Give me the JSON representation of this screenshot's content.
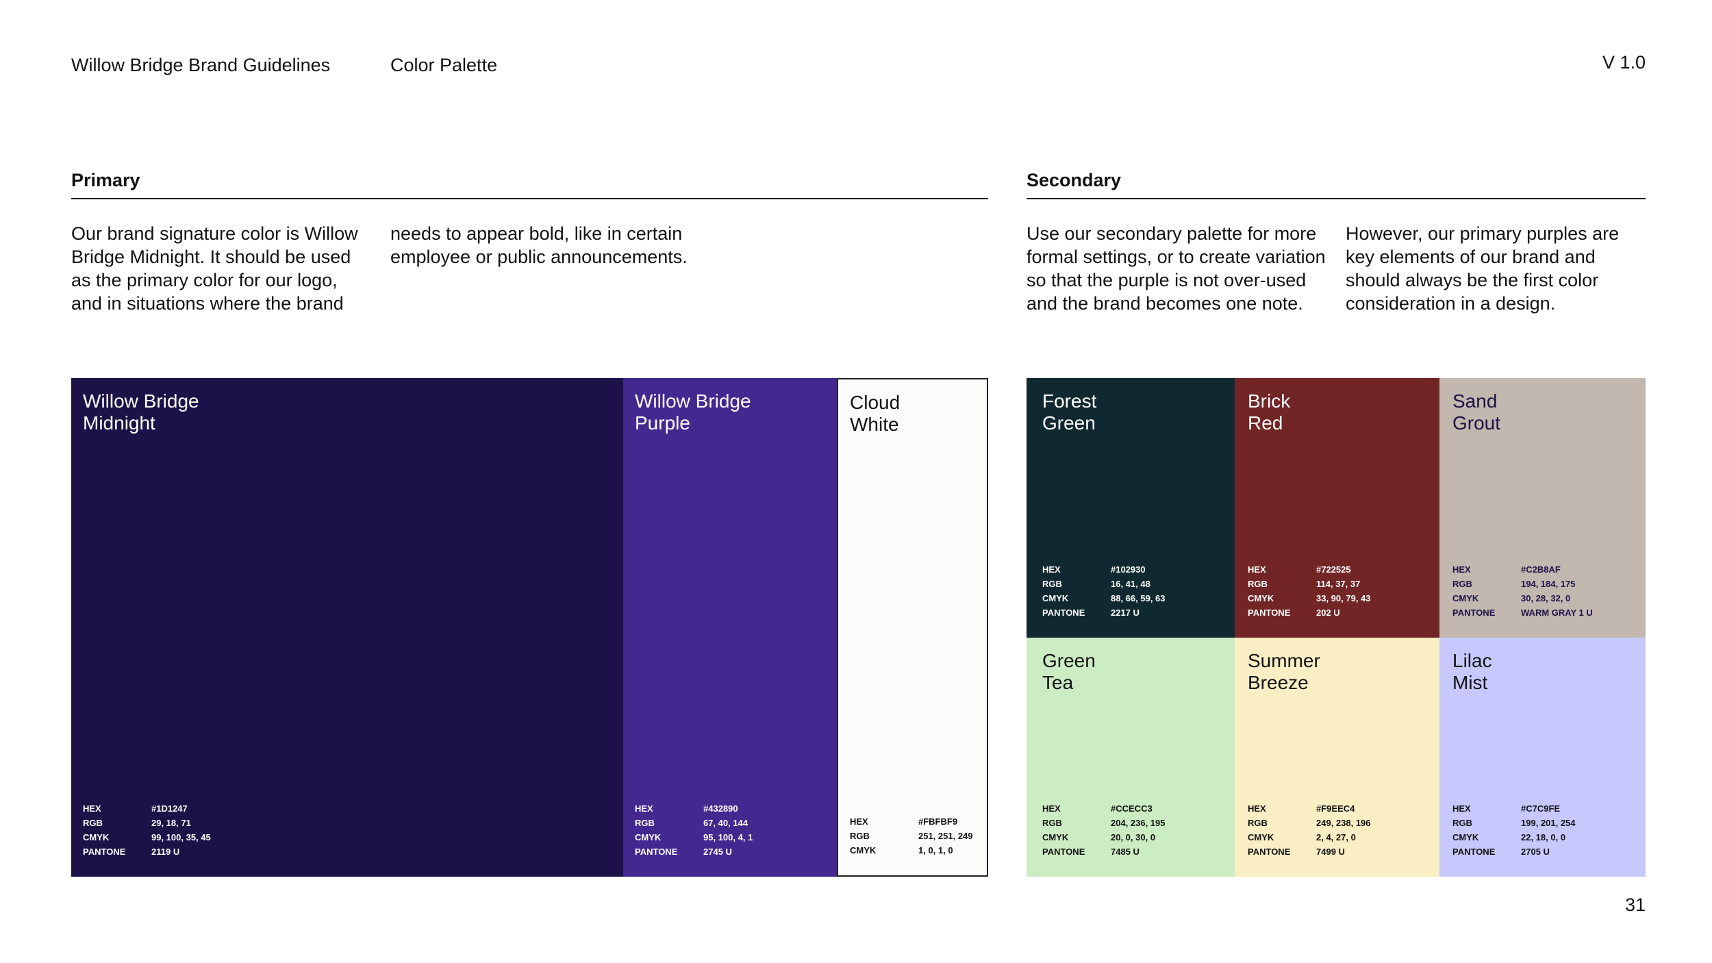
{
  "header": {
    "brand": "Willow Bridge Brand Guidelines",
    "section": "Color Palette",
    "version": "V 1.0"
  },
  "page_number": "31",
  "primary": {
    "heading": "Primary",
    "text_col1": "Our brand signature color is Willow Bridge Midnight. It should be used as the primary color for our logo, and in situations where the brand",
    "text_col2": "needs to appear bold, like in certain employee or public announcements.",
    "swatches": [
      {
        "name": "Willow Bridge\nMidnight",
        "color": "#1D1247",
        "text_color": "#ffffff",
        "specs": [
          [
            "HEX",
            "#1D1247"
          ],
          [
            "RGB",
            "29, 18, 71"
          ],
          [
            "CMYK",
            "99, 100, 35, 45"
          ],
          [
            "PANTONE",
            "2119 U"
          ]
        ]
      },
      {
        "name": "Willow Bridge\nPurple",
        "color": "#432890",
        "text_color": "#ffffff",
        "specs": [
          [
            "HEX",
            "#432890"
          ],
          [
            "RGB",
            "67, 40, 144"
          ],
          [
            "CMYK",
            "95, 100, 4, 1"
          ],
          [
            "PANTONE",
            "2745 U"
          ]
        ]
      },
      {
        "name": "Cloud\nWhite",
        "color": "#FBFBF9",
        "text_color": "#111111",
        "specs": [
          [
            "HEX",
            "#FBFBF9"
          ],
          [
            "RGB",
            "251, 251, 249"
          ],
          [
            "CMYK",
            "1, 0, 1, 0"
          ]
        ]
      }
    ]
  },
  "secondary": {
    "heading": "Secondary",
    "text_col1": "Use our secondary palette for more formal settings, or to create variation so that the purple is not over-used and the brand becomes one note.",
    "text_col2": "However, our primary purples are key elements of our brand and should always be the first color consideration in a design.",
    "swatches": [
      {
        "name": "Forest\nGreen",
        "color": "#102930",
        "text_color": "#ffffff",
        "specs": [
          [
            "HEX",
            "#102930"
          ],
          [
            "RGB",
            "16, 41, 48"
          ],
          [
            "CMYK",
            "88, 66, 59, 63"
          ],
          [
            "PANTONE",
            "2217 U"
          ]
        ]
      },
      {
        "name": "Brick\nRed",
        "color": "#722525",
        "text_color": "#ffffff",
        "specs": [
          [
            "HEX",
            "#722525"
          ],
          [
            "RGB",
            "114, 37, 37"
          ],
          [
            "CMYK",
            "33, 90, 79, 43"
          ],
          [
            "PANTONE",
            "202 U"
          ]
        ]
      },
      {
        "name": "Sand\nGrout",
        "color": "#C2B8AF",
        "text_color": "#1D1247",
        "specs": [
          [
            "HEX",
            "#C2B8AF"
          ],
          [
            "RGB",
            "194, 184, 175"
          ],
          [
            "CMYK",
            "30, 28, 32, 0"
          ],
          [
            "PANTONE",
            "WARM GRAY 1 U"
          ]
        ]
      },
      {
        "name": "Green\nTea",
        "color": "#CCECC3",
        "text_color": "#111111",
        "specs": [
          [
            "HEX",
            "#CCECC3"
          ],
          [
            "RGB",
            "204, 236, 195"
          ],
          [
            "CMYK",
            "20, 0, 30, 0"
          ],
          [
            "PANTONE",
            "7485 U"
          ]
        ]
      },
      {
        "name": "Summer\nBreeze",
        "color": "#F9EEC4",
        "text_color": "#111111",
        "specs": [
          [
            "HEX",
            "#F9EEC4"
          ],
          [
            "RGB",
            "249, 238, 196"
          ],
          [
            "CMYK",
            "2, 4, 27, 0"
          ],
          [
            "PANTONE",
            "7499 U"
          ]
        ]
      },
      {
        "name": "Lilac\nMist",
        "color": "#C7C9FE",
        "text_color": "#111111",
        "specs": [
          [
            "HEX",
            "#C7C9FE"
          ],
          [
            "RGB",
            "199, 201, 254"
          ],
          [
            "CMYK",
            "22, 18, 0, 0"
          ],
          [
            "PANTONE",
            "2705 U"
          ]
        ]
      }
    ]
  }
}
